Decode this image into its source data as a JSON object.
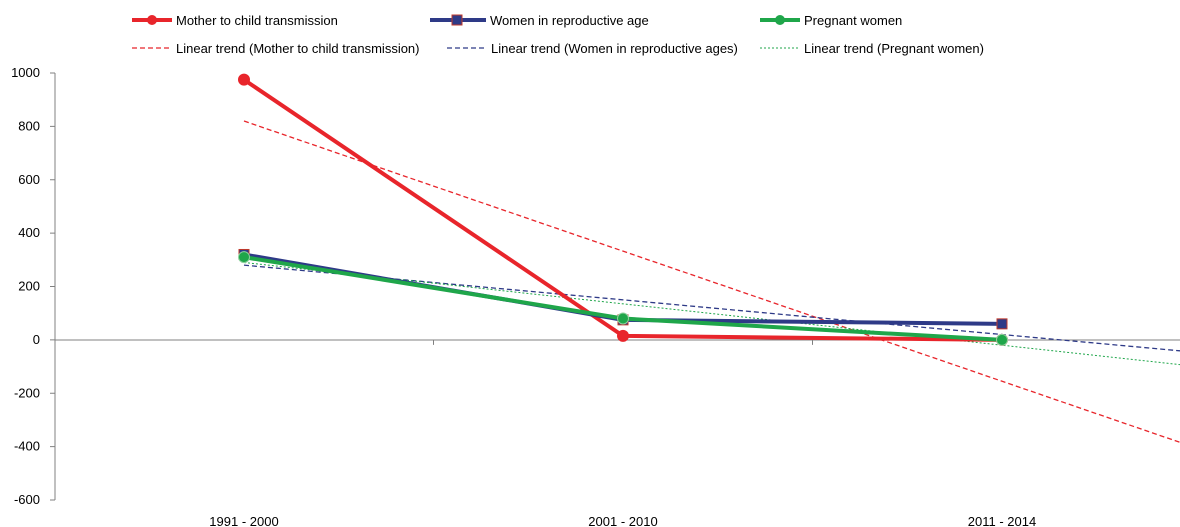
{
  "chart_data": {
    "type": "line",
    "categories": [
      "1991 - 2000",
      "2001 - 2010",
      "2011 - 2014"
    ],
    "ylim": [
      -600,
      1000
    ],
    "yticks": [
      1000,
      800,
      600,
      400,
      200,
      0,
      -200,
      -400,
      -600
    ],
    "grid": false,
    "legend_placement": "top",
    "series": [
      {
        "name": "Mother to child transmission",
        "values": [
          975,
          15,
          0
        ],
        "color": "#e8252b",
        "marker": "circle"
      },
      {
        "name": "Women in reproductive age",
        "values": [
          320,
          75,
          60
        ],
        "color": "#2e3a87",
        "marker": "square"
      },
      {
        "name": "Pregnant women",
        "values": [
          310,
          80,
          0
        ],
        "color": "#1fa64a",
        "marker": "circle"
      }
    ],
    "trendlines": [
      {
        "name": "Linear trend (Mother to child transmission)",
        "color": "#e8252b",
        "style": "dashed",
        "start": 820,
        "slope": -487.5
      },
      {
        "name": "Linear trend (Women in reproductive ages)",
        "color": "#2e3a87",
        "style": "dashed",
        "start": 280,
        "slope": -130
      },
      {
        "name": "Linear trend (Pregnant women)",
        "color": "#1fa64a",
        "style": "dotted",
        "start": 290,
        "slope": -155
      }
    ]
  }
}
